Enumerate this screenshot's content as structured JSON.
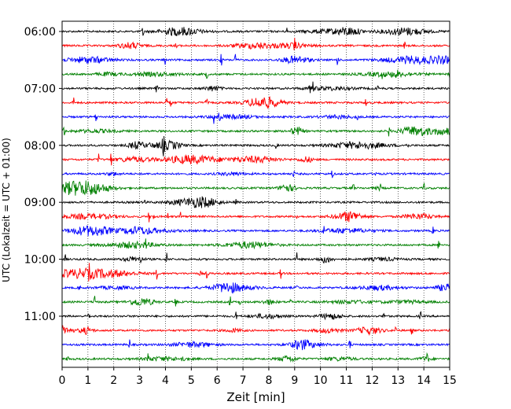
{
  "chart_data": {
    "type": "line",
    "chart_kind": "helicorder",
    "xlabel": "Zeit  [min]",
    "ylabel": "UTC (Lokalzeit = UTC + 01:00)",
    "xlim": [
      0,
      15
    ],
    "x_ticks": [
      0,
      1,
      2,
      3,
      4,
      5,
      6,
      7,
      8,
      9,
      10,
      11,
      12,
      13,
      14,
      15
    ],
    "y_tick_labels": [
      "06:00",
      "07:00",
      "08:00",
      "09:00",
      "10:00",
      "11:00"
    ],
    "trace_interval_minutes": 15,
    "trace_count": 24,
    "trace_colors": [
      "#000000",
      "#ff0000",
      "#0000ff",
      "#008000"
    ],
    "grid": "vertical-dotted",
    "legend": "none"
  }
}
